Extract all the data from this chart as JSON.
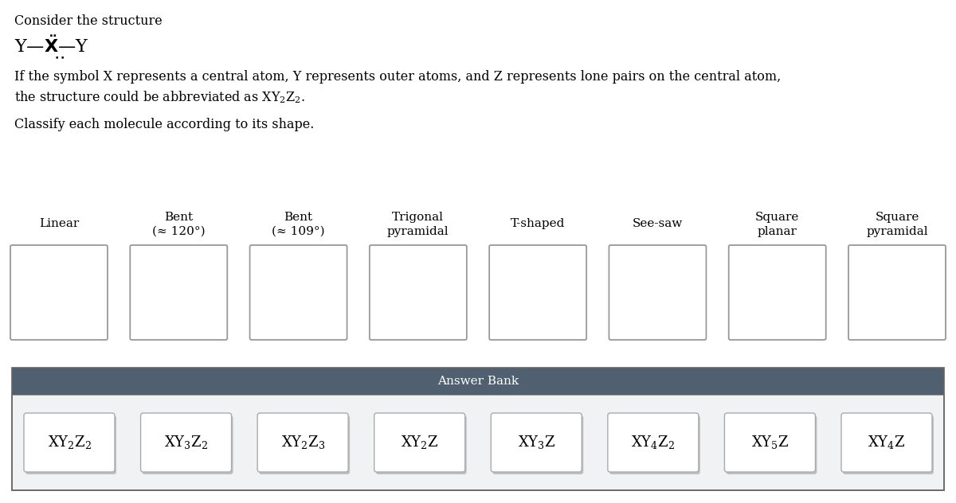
{
  "title_line1": "Consider the structure",
  "bg_color": "#ffffff",
  "answer_bank_header_color": "#506070",
  "answer_bank_bg_color": "#f0f2f4",
  "box_outline_color": "#999999",
  "shape_labels": [
    [
      "Linear",
      ""
    ],
    [
      "Bent",
      "(≈ 120°)"
    ],
    [
      "Bent",
      "(≈ 109°)"
    ],
    [
      "Trigonal",
      "pyramidal"
    ],
    [
      "T-shaped",
      ""
    ],
    [
      "See-saw",
      ""
    ],
    [
      "Square",
      "planar"
    ],
    [
      "Square",
      "pyramidal"
    ]
  ],
  "answer_items_raw": [
    [
      "XY",
      "2",
      "Z",
      "2"
    ],
    [
      "XY",
      "3",
      "Z",
      "2"
    ],
    [
      "XY",
      "2",
      "Z",
      "3"
    ],
    [
      "XY",
      "2",
      "Z",
      ""
    ],
    [
      "XY",
      "3",
      "Z",
      ""
    ],
    [
      "XY",
      "4",
      "Z",
      "2"
    ],
    [
      "XY",
      "5",
      "Z",
      ""
    ],
    [
      "XY",
      "4",
      "Z",
      ""
    ]
  ],
  "fig_width": 12.0,
  "fig_height": 6.32,
  "dpi": 100,
  "text_fontsize": 11.5,
  "label_fontsize": 11,
  "formula_fontsize": 13
}
